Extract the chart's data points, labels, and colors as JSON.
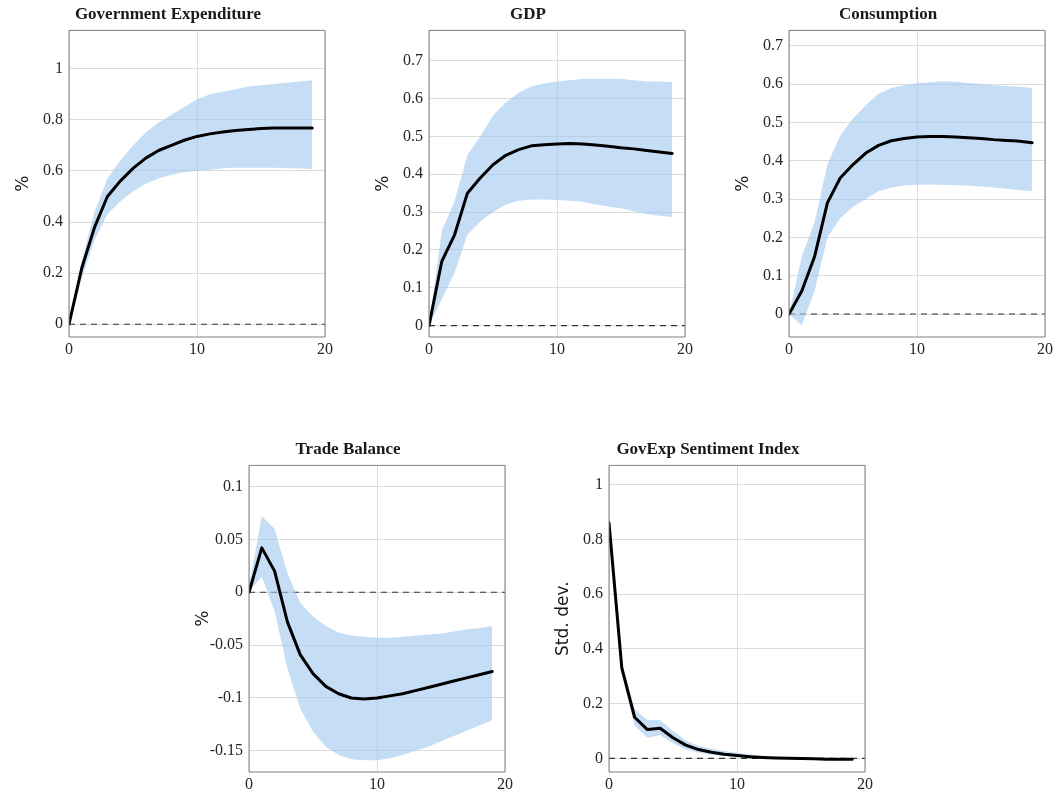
{
  "chart_data": [
    {
      "type": "line",
      "title": "Government Expenditure",
      "ylabel": "%",
      "x": [
        0,
        1,
        2,
        3,
        4,
        5,
        6,
        7,
        8,
        9,
        10,
        11,
        12,
        13,
        14,
        15,
        16,
        17,
        18,
        19
      ],
      "xlim": [
        0,
        20
      ],
      "xticks": [
        0,
        10,
        20
      ],
      "ylim": [
        -0.05,
        1.15
      ],
      "yticks": [
        0,
        0.2,
        0.4,
        0.6,
        0.8,
        1
      ],
      "grid": true,
      "series": [
        {
          "color": "#000000",
          "values": [
            0,
            0.22,
            0.38,
            0.5,
            0.56,
            0.61,
            0.65,
            0.68,
            0.7,
            0.72,
            0.735,
            0.745,
            0.752,
            0.758,
            0.762,
            0.766,
            0.768,
            0.768,
            0.768,
            0.768
          ],
          "upper": [
            0,
            0.25,
            0.44,
            0.57,
            0.64,
            0.7,
            0.75,
            0.79,
            0.82,
            0.85,
            0.88,
            0.9,
            0.91,
            0.92,
            0.93,
            0.935,
            0.94,
            0.945,
            0.95,
            0.955
          ],
          "lower": [
            0,
            0.18,
            0.33,
            0.43,
            0.48,
            0.52,
            0.55,
            0.57,
            0.585,
            0.595,
            0.6,
            0.605,
            0.61,
            0.612,
            0.612,
            0.612,
            0.612,
            0.61,
            0.61,
            0.607
          ]
        }
      ],
      "ref_lines": [
        {
          "axis": "y",
          "value": 0,
          "line_style": "dashed",
          "color": "#333333"
        }
      ]
    },
    {
      "type": "line",
      "title": "GDP",
      "ylabel": "%",
      "x": [
        0,
        1,
        2,
        3,
        4,
        5,
        6,
        7,
        8,
        9,
        10,
        11,
        12,
        13,
        14,
        15,
        16,
        17,
        18,
        19
      ],
      "xlim": [
        0,
        20
      ],
      "xticks": [
        0,
        10,
        20
      ],
      "ylim": [
        -0.03,
        0.78
      ],
      "yticks": [
        0,
        0.1,
        0.2,
        0.3,
        0.4,
        0.5,
        0.6,
        0.7
      ],
      "grid": true,
      "series": [
        {
          "color": "#000000",
          "values": [
            0,
            0.17,
            0.24,
            0.35,
            0.39,
            0.425,
            0.45,
            0.465,
            0.475,
            0.478,
            0.48,
            0.481,
            0.48,
            0.477,
            0.474,
            0.47,
            0.467,
            0.463,
            0.459,
            0.455
          ],
          "upper": [
            0,
            0.25,
            0.33,
            0.45,
            0.5,
            0.555,
            0.59,
            0.615,
            0.632,
            0.64,
            0.645,
            0.648,
            0.652,
            0.652,
            0.652,
            0.652,
            0.648,
            0.645,
            0.645,
            0.643
          ],
          "lower": [
            0,
            0.07,
            0.14,
            0.24,
            0.275,
            0.3,
            0.32,
            0.33,
            0.333,
            0.333,
            0.332,
            0.33,
            0.327,
            0.32,
            0.315,
            0.31,
            0.302,
            0.295,
            0.29,
            0.287
          ]
        }
      ],
      "ref_lines": [
        {
          "axis": "y",
          "value": 0,
          "line_style": "dashed",
          "color": "#333333"
        }
      ]
    },
    {
      "type": "line",
      "title": "Consumption",
      "ylabel": "%",
      "x": [
        0,
        1,
        2,
        3,
        4,
        5,
        6,
        7,
        8,
        9,
        10,
        11,
        12,
        13,
        14,
        15,
        16,
        17,
        18,
        19
      ],
      "xlim": [
        0,
        20
      ],
      "xticks": [
        0,
        10,
        20
      ],
      "ylim": [
        -0.06,
        0.74
      ],
      "yticks": [
        0,
        0.1,
        0.2,
        0.3,
        0.4,
        0.5,
        0.6,
        0.7
      ],
      "grid": true,
      "series": [
        {
          "color": "#000000",
          "values": [
            0,
            0.06,
            0.15,
            0.29,
            0.355,
            0.39,
            0.42,
            0.44,
            0.452,
            0.458,
            0.462,
            0.463,
            0.463,
            0.462,
            0.46,
            0.458,
            0.455,
            0.453,
            0.451,
            0.447
          ],
          "upper": [
            0,
            0.15,
            0.24,
            0.39,
            0.465,
            0.51,
            0.545,
            0.575,
            0.59,
            0.597,
            0.602,
            0.605,
            0.607,
            0.606,
            0.603,
            0.6,
            0.597,
            0.595,
            0.593,
            0.59
          ],
          "lower": [
            0,
            -0.03,
            0.06,
            0.2,
            0.25,
            0.28,
            0.3,
            0.32,
            0.33,
            0.335,
            0.337,
            0.338,
            0.337,
            0.336,
            0.335,
            0.333,
            0.33,
            0.327,
            0.323,
            0.32
          ]
        }
      ],
      "ref_lines": [
        {
          "axis": "y",
          "value": 0,
          "line_style": "dashed",
          "color": "#333333"
        }
      ]
    },
    {
      "type": "line",
      "title": "Trade Balance",
      "ylabel": "%",
      "x": [
        0,
        1,
        2,
        3,
        4,
        5,
        6,
        7,
        8,
        9,
        10,
        11,
        12,
        13,
        14,
        15,
        16,
        17,
        18,
        19
      ],
      "xlim": [
        0,
        20
      ],
      "xticks": [
        0,
        10,
        20
      ],
      "ylim": [
        -0.17,
        0.12
      ],
      "yticks": [
        -0.15,
        -0.1,
        -0.05,
        0,
        0.05,
        0.1
      ],
      "grid": true,
      "series": [
        {
          "color": "#000000",
          "values": [
            0,
            0.042,
            0.02,
            -0.028,
            -0.059,
            -0.077,
            -0.089,
            -0.096,
            -0.1,
            -0.101,
            -0.1,
            -0.098,
            -0.096,
            -0.093,
            -0.09,
            -0.087,
            -0.084,
            -0.081,
            -0.078,
            -0.075
          ],
          "upper": [
            0.005,
            0.072,
            0.06,
            0.018,
            -0.01,
            -0.023,
            -0.032,
            -0.038,
            -0.041,
            -0.042,
            -0.043,
            -0.043,
            -0.042,
            -0.041,
            -0.04,
            -0.039,
            -0.037,
            -0.035,
            -0.034,
            -0.032
          ],
          "lower": [
            0,
            0.015,
            -0.018,
            -0.072,
            -0.11,
            -0.132,
            -0.146,
            -0.154,
            -0.158,
            -0.159,
            -0.159,
            -0.157,
            -0.154,
            -0.15,
            -0.146,
            -0.141,
            -0.136,
            -0.131,
            -0.126,
            -0.121
          ]
        }
      ],
      "ref_lines": [
        {
          "axis": "y",
          "value": 0,
          "line_style": "dashed",
          "color": "#333333"
        }
      ]
    },
    {
      "type": "line",
      "title": "GovExp Sentiment Index",
      "ylabel": "Std. dev.",
      "x": [
        0,
        1,
        2,
        3,
        4,
        5,
        6,
        7,
        8,
        9,
        10,
        11,
        12,
        13,
        14,
        15,
        16,
        17,
        18,
        19
      ],
      "xlim": [
        0,
        20
      ],
      "xticks": [
        0,
        10,
        20
      ],
      "ylim": [
        -0.05,
        1.07
      ],
      "yticks": [
        0,
        0.2,
        0.4,
        0.6,
        0.8,
        1
      ],
      "grid": true,
      "series": [
        {
          "color": "#000000",
          "values": [
            0.86,
            0.33,
            0.15,
            0.105,
            0.11,
            0.075,
            0.048,
            0.032,
            0.022,
            0.015,
            0.01,
            0.006,
            0.003,
            0.001,
            0,
            -0.001,
            -0.002,
            -0.003,
            -0.003,
            -0.003
          ],
          "upper": [
            0.86,
            0.35,
            0.18,
            0.14,
            0.14,
            0.1,
            0.065,
            0.045,
            0.035,
            0.027,
            0.02,
            0.013,
            0.008,
            0.005,
            0.003,
            0.002,
            0.001,
            0,
            0,
            0
          ],
          "lower": [
            0.86,
            0.31,
            0.12,
            0.075,
            0.085,
            0.055,
            0.032,
            0.02,
            0.013,
            0.008,
            0.005,
            0.002,
            0,
            -0.002,
            -0.003,
            -0.004,
            -0.005,
            -0.005,
            -0.006,
            -0.006
          ]
        }
      ],
      "ref_lines": [
        {
          "axis": "y",
          "value": 0,
          "line_style": "dashed",
          "color": "#333333"
        }
      ]
    }
  ]
}
